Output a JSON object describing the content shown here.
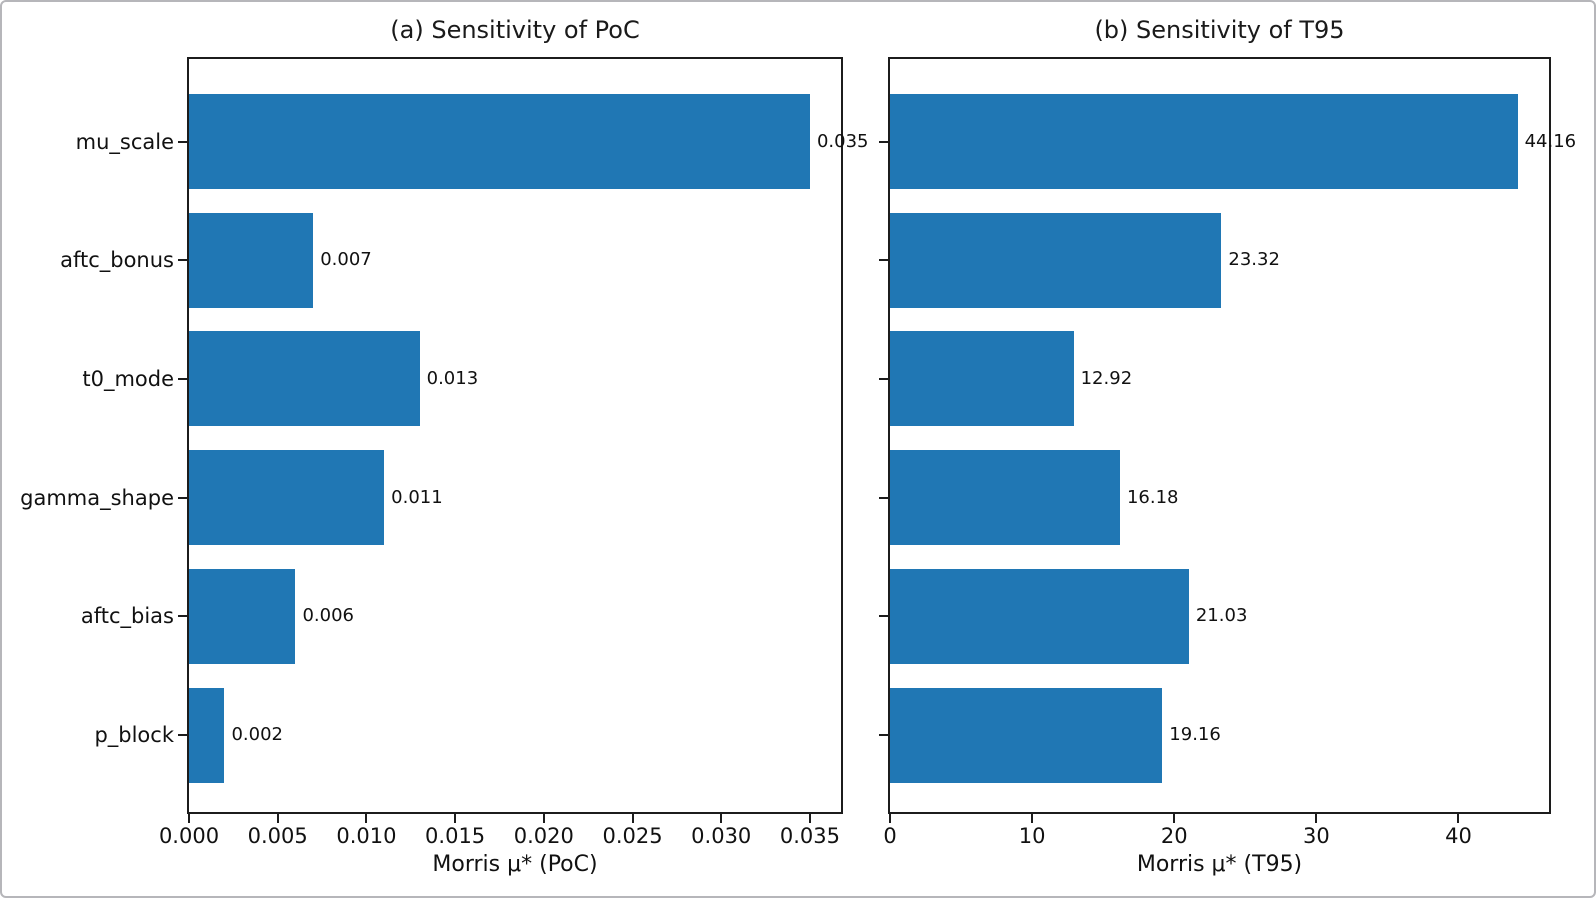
{
  "page": {
    "background": "#ffffff",
    "border_color": "#b6b6ba",
    "text_color": "#111111",
    "spine_color": "#1c1c1c"
  },
  "chart_data": [
    {
      "type": "bar",
      "orientation": "horizontal",
      "panel": "a",
      "title": "(a) Sensitivity of PoC",
      "xlabel": "Morris μ* (PoC)",
      "ylabel": "",
      "categories": [
        "mu_scale",
        "aftc_bonus",
        "t0_mode",
        "gamma_shape",
        "aftc_bias",
        "p_block"
      ],
      "values": [
        0.035,
        0.007,
        0.013,
        0.011,
        0.006,
        0.002
      ],
      "value_labels": [
        "0.035",
        "0.007",
        "0.013",
        "0.011",
        "0.006",
        "0.002"
      ],
      "x_ticks": [
        0.0,
        0.005,
        0.01,
        0.015,
        0.02,
        0.025,
        0.03,
        0.035
      ],
      "x_tick_labels": [
        "0.000",
        "0.005",
        "0.010",
        "0.015",
        "0.020",
        "0.025",
        "0.030",
        "0.035"
      ],
      "xlim": [
        0,
        0.03675
      ],
      "bar_color": "#2077b4",
      "show_category_labels": true,
      "grid": false,
      "legend": null
    },
    {
      "type": "bar",
      "orientation": "horizontal",
      "panel": "b",
      "title": "(b) Sensitivity of T95",
      "xlabel": "Morris μ* (T95)",
      "ylabel": "",
      "categories": [
        "mu_scale",
        "aftc_bonus",
        "t0_mode",
        "gamma_shape",
        "aftc_bias",
        "p_block"
      ],
      "values": [
        44.16,
        23.32,
        12.92,
        16.18,
        21.03,
        19.16
      ],
      "value_labels": [
        "44.16",
        "23.32",
        "12.92",
        "16.18",
        "21.03",
        "19.16"
      ],
      "x_ticks": [
        0,
        10,
        20,
        30,
        40
      ],
      "x_tick_labels": [
        "0",
        "10",
        "20",
        "30",
        "40"
      ],
      "xlim": [
        0,
        46.37
      ],
      "bar_color": "#2077b4",
      "show_category_labels": false,
      "grid": false,
      "legend": null
    }
  ]
}
